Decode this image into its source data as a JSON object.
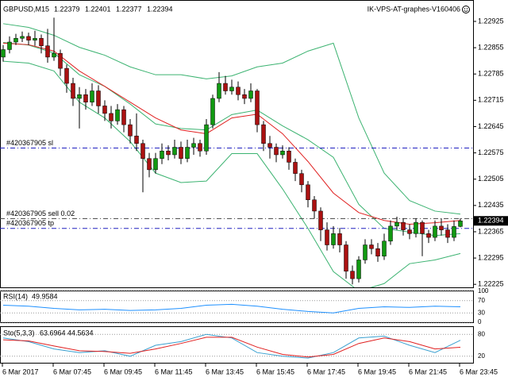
{
  "chart_data": {
    "type": "candlestick",
    "symbol": "GBPUSD,M15",
    "expert": "IK-VPS-AT-graphes-V160406",
    "up_color": "#119911",
    "down_color": "#aa1111",
    "ylim": [
      1.22217,
      1.22982
    ],
    "yticks": [
      1.22925,
      1.22855,
      1.22785,
      1.22715,
      1.22645,
      1.22575,
      1.22505,
      1.22435,
      1.22365,
      1.22295,
      1.22225
    ],
    "candles": [
      [
        1.2283,
        1.22862,
        1.22818,
        1.2285
      ],
      [
        1.2285,
        1.22885,
        1.2284,
        1.2287
      ],
      [
        1.2287,
        1.22892,
        1.22862,
        1.2288
      ],
      [
        1.2288,
        1.22898,
        1.2287,
        1.22885
      ],
      [
        1.22885,
        1.22895,
        1.22862,
        1.22875
      ],
      [
        1.22875,
        1.229,
        1.2286,
        1.2288
      ],
      [
        1.2288,
        1.2289,
        1.2284,
        1.2286
      ],
      [
        1.2286,
        1.22905,
        1.22815,
        1.2283
      ],
      [
        1.2283,
        1.22935,
        1.2282,
        1.2284
      ],
      [
        1.2284,
        1.2285,
        1.2278,
        1.228
      ],
      [
        1.228,
        1.2281,
        1.22735,
        1.2276
      ],
      [
        1.2276,
        1.22775,
        1.227,
        1.2272
      ],
      [
        1.2272,
        1.2275,
        1.2264,
        1.2273
      ],
      [
        1.2273,
        1.22745,
        1.2269,
        1.2271
      ],
      [
        1.2271,
        1.2276,
        1.227,
        1.2274
      ],
      [
        1.2274,
        1.22755,
        1.2268,
        1.227
      ],
      [
        1.227,
        1.22715,
        1.2266,
        1.2268
      ],
      [
        1.2268,
        1.227,
        1.2264,
        1.2266
      ],
      [
        1.2266,
        1.22705,
        1.2265,
        1.2269
      ],
      [
        1.2269,
        1.227,
        1.2263,
        1.2265
      ],
      [
        1.2265,
        1.22665,
        1.226,
        1.2262
      ],
      [
        1.2262,
        1.2268,
        1.2258,
        1.226
      ],
      [
        1.226,
        1.2261,
        1.2247,
        1.2256
      ],
      [
        1.2256,
        1.22575,
        1.2251,
        1.2253
      ],
      [
        1.2253,
        1.22575,
        1.2252,
        1.2256
      ],
      [
        1.2256,
        1.226,
        1.22545,
        1.2258
      ],
      [
        1.2258,
        1.22595,
        1.22555,
        1.2257
      ],
      [
        1.2257,
        1.2261,
        1.2256,
        1.2259
      ],
      [
        1.2259,
        1.22605,
        1.22545,
        1.2256
      ],
      [
        1.2256,
        1.2261,
        1.2255,
        1.2259
      ],
      [
        1.2259,
        1.22615,
        1.2257,
        1.226
      ],
      [
        1.226,
        1.2261,
        1.22565,
        1.2258
      ],
      [
        1.2258,
        1.22665,
        1.2257,
        1.2265
      ],
      [
        1.2265,
        1.2273,
        1.2264,
        1.2272
      ],
      [
        1.2272,
        1.2279,
        1.2271,
        1.2276
      ],
      [
        1.2276,
        1.2278,
        1.2273,
        1.2274
      ],
      [
        1.2274,
        1.2277,
        1.2273,
        1.2275
      ],
      [
        1.2275,
        1.22765,
        1.22715,
        1.2273
      ],
      [
        1.2273,
        1.22745,
        1.22705,
        1.2272
      ],
      [
        1.2272,
        1.2276,
        1.2271,
        1.2274
      ],
      [
        1.2274,
        1.22745,
        1.2263,
        1.2265
      ],
      [
        1.2265,
        1.2266,
        1.2258,
        1.226
      ],
      [
        1.226,
        1.2262,
        1.2256,
        1.2259
      ],
      [
        1.2259,
        1.226,
        1.2255,
        1.2257
      ],
      [
        1.2257,
        1.22595,
        1.2256,
        1.2258
      ],
      [
        1.2258,
        1.2259,
        1.2253,
        1.2255
      ],
      [
        1.2255,
        1.2256,
        1.225,
        1.2252
      ],
      [
        1.2252,
        1.2253,
        1.2247,
        1.2249
      ],
      [
        1.2249,
        1.225,
        1.2243,
        1.2245
      ],
      [
        1.2245,
        1.2246,
        1.224,
        1.2242
      ],
      [
        1.2242,
        1.2243,
        1.2234,
        1.2237
      ],
      [
        1.2237,
        1.2239,
        1.22315,
        1.2233
      ],
      [
        1.2233,
        1.2238,
        1.2232,
        1.2236
      ],
      [
        1.2236,
        1.22375,
        1.2231,
        1.2233
      ],
      [
        1.2233,
        1.2234,
        1.2224,
        1.2226
      ],
      [
        1.2226,
        1.22275,
        1.22225,
        1.2224
      ],
      [
        1.2224,
        1.223,
        1.2223,
        1.2229
      ],
      [
        1.2229,
        1.22345,
        1.2228,
        1.2233
      ],
      [
        1.2233,
        1.22345,
        1.22305,
        1.2232
      ],
      [
        1.2232,
        1.22335,
        1.22285,
        1.223
      ],
      [
        1.223,
        1.2236,
        1.2229,
        1.2234
      ],
      [
        1.2234,
        1.22395,
        1.2233,
        1.2238
      ],
      [
        1.2238,
        1.22405,
        1.2237,
        1.2239
      ],
      [
        1.2239,
        1.224,
        1.22355,
        1.2237
      ],
      [
        1.2237,
        1.22385,
        1.22345,
        1.2236
      ],
      [
        1.2236,
        1.224,
        1.2235,
        1.2239
      ],
      [
        1.2239,
        1.22395,
        1.223,
        1.2236
      ],
      [
        1.2236,
        1.2237,
        1.22335,
        1.2235
      ],
      [
        1.2235,
        1.22395,
        1.2234,
        1.2238
      ],
      [
        1.2238,
        1.224,
        1.22355,
        1.2237
      ],
      [
        1.2237,
        1.22385,
        1.22335,
        1.2235
      ],
      [
        1.2235,
        1.22395,
        1.2234,
        1.22379
      ],
      [
        1.22379,
        1.22401,
        1.22377,
        1.22394
      ]
    ],
    "line_x": [
      0,
      4,
      8,
      12,
      16,
      20,
      24,
      28,
      32,
      36,
      40,
      44,
      48,
      52,
      56,
      60,
      64,
      68,
      72
    ],
    "lines": [
      {
        "color": "#3cb371",
        "values": [
          1.22919,
          1.22909,
          1.22888,
          1.22856,
          1.22835,
          1.22804,
          1.22783,
          1.22783,
          1.22772,
          1.2278,
          1.22804,
          1.22814,
          1.22846,
          1.22867,
          1.22668,
          1.22521,
          1.22448,
          1.2242,
          1.22412
        ]
      },
      {
        "color": "#3cb371",
        "values": [
          1.22869,
          1.22862,
          1.22841,
          1.22783,
          1.22752,
          1.22705,
          1.22652,
          1.2264,
          1.22636,
          1.22677,
          1.22689,
          1.22647,
          1.2261,
          1.22563,
          1.22438,
          1.22374,
          1.22364,
          1.22355,
          1.2236
        ]
      },
      {
        "color": "#3cb371",
        "values": [
          1.22819,
          1.22814,
          1.22793,
          1.2271,
          1.22668,
          1.22605,
          1.22521,
          1.22496,
          1.225,
          1.22573,
          1.22573,
          1.22479,
          1.22374,
          1.22259,
          1.22207,
          1.22227,
          1.2228,
          1.2229,
          1.22307
        ]
      },
      {
        "color": "#e02020",
        "values": [
          1.22867,
          1.22863,
          1.22846,
          1.22793,
          1.22752,
          1.2271,
          1.22668,
          1.22636,
          1.22626,
          1.22668,
          1.22678,
          1.22626,
          1.22552,
          1.22468,
          1.22416,
          1.22395,
          1.22385,
          1.22389,
          1.22395
        ]
      }
    ],
    "orders": [
      {
        "label": "#420367905 sl",
        "price": 1.22588,
        "color": "#2020c0"
      },
      {
        "label": "#420367905 sell 0.02",
        "price": 1.224,
        "color": "#444444"
      },
      {
        "label": "#420367905 tp",
        "price": 1.22374,
        "color": "#2020c0"
      }
    ],
    "rsi": {
      "title": "RSI(14)",
      "color": "#1e90ff",
      "ylim": [
        0,
        100
      ],
      "yticks": [
        100,
        70,
        30,
        0
      ],
      "values": [
        55,
        52,
        45,
        40,
        42,
        38,
        40,
        45,
        55,
        58,
        52,
        42,
        35,
        30,
        45,
        50,
        48,
        52,
        49.9584
      ]
    },
    "stoch": {
      "title": "Sto(5,3,3)",
      "ylim": [
        0,
        100
      ],
      "yticks": [
        80,
        20
      ],
      "main": {
        "color": "#3aa0d0",
        "values": [
          70,
          60,
          40,
          30,
          35,
          20,
          50,
          60,
          80,
          70,
          30,
          20,
          15,
          30,
          70,
          75,
          50,
          30,
          63.6964
        ]
      },
      "signal": {
        "color": "#e02020",
        "values": [
          65,
          62,
          48,
          35,
          33,
          28,
          40,
          55,
          72,
          72,
          45,
          25,
          18,
          25,
          55,
          70,
          60,
          40,
          44.5634
        ]
      }
    },
    "time_labels": [
      {
        "index": 0,
        "label": "6 Mar 2017"
      },
      {
        "index": 8,
        "label": "6 Mar 07:45"
      },
      {
        "index": 16,
        "label": "6 Mar 09:45"
      },
      {
        "index": 24,
        "label": "6 Mar 11:45"
      },
      {
        "index": 32,
        "label": "6 Mar 13:45"
      },
      {
        "index": 40,
        "label": "6 Mar 15:45"
      },
      {
        "index": 48,
        "label": "6 Mar 17:45"
      },
      {
        "index": 56,
        "label": "6 Mar 19:45"
      },
      {
        "index": 64,
        "label": "6 Mar 21:45"
      },
      {
        "index": 72,
        "label": "6 Mar 23:45"
      }
    ]
  }
}
